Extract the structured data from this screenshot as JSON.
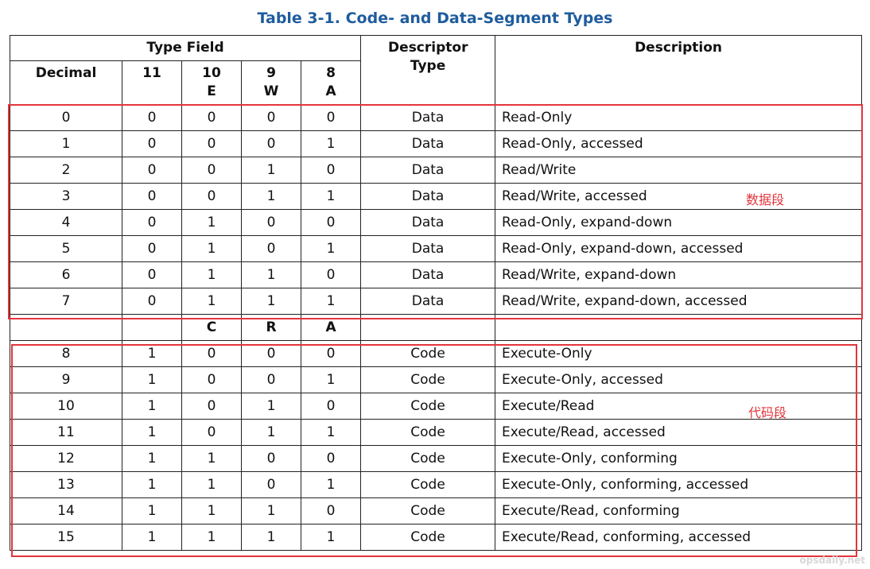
{
  "title": "Table 3-1.  Code- and Data-Segment Types",
  "headers": {
    "type_field": "Type Field",
    "descriptor_type": "Descriptor Type",
    "description": "Description",
    "decimal": "Decimal",
    "bit11": "11",
    "bit10": "10",
    "bit10_flag": "E",
    "bit9": "9",
    "bit9_flag": "W",
    "bit8": "8",
    "bit8_flag": "A"
  },
  "data_rows": [
    {
      "dec": "0",
      "b11": "0",
      "b10": "0",
      "b9": "0",
      "b8": "0",
      "type": "Data",
      "desc": "Read-Only"
    },
    {
      "dec": "1",
      "b11": "0",
      "b10": "0",
      "b9": "0",
      "b8": "1",
      "type": "Data",
      "desc": "Read-Only, accessed"
    },
    {
      "dec": "2",
      "b11": "0",
      "b10": "0",
      "b9": "1",
      "b8": "0",
      "type": "Data",
      "desc": "Read/Write"
    },
    {
      "dec": "3",
      "b11": "0",
      "b10": "0",
      "b9": "1",
      "b8": "1",
      "type": "Data",
      "desc": "Read/Write, accessed"
    },
    {
      "dec": "4",
      "b11": "0",
      "b10": "1",
      "b9": "0",
      "b8": "0",
      "type": "Data",
      "desc": "Read-Only, expand-down"
    },
    {
      "dec": "5",
      "b11": "0",
      "b10": "1",
      "b9": "0",
      "b8": "1",
      "type": "Data",
      "desc": "Read-Only, expand-down, accessed"
    },
    {
      "dec": "6",
      "b11": "0",
      "b10": "1",
      "b9": "1",
      "b8": "0",
      "type": "Data",
      "desc": "Read/Write, expand-down"
    },
    {
      "dec": "7",
      "b11": "0",
      "b10": "1",
      "b9": "1",
      "b8": "1",
      "type": "Data",
      "desc": "Read/Write, expand-down, accessed"
    }
  ],
  "code_flags": {
    "c": "C",
    "r": "R",
    "a": "A"
  },
  "code_rows": [
    {
      "dec": "8",
      "b11": "1",
      "b10": "0",
      "b9": "0",
      "b8": "0",
      "type": "Code",
      "desc": "Execute-Only"
    },
    {
      "dec": "9",
      "b11": "1",
      "b10": "0",
      "b9": "0",
      "b8": "1",
      "type": "Code",
      "desc": "Execute-Only, accessed"
    },
    {
      "dec": "10",
      "b11": "1",
      "b10": "0",
      "b9": "1",
      "b8": "0",
      "type": "Code",
      "desc": "Execute/Read"
    },
    {
      "dec": "11",
      "b11": "1",
      "b10": "0",
      "b9": "1",
      "b8": "1",
      "type": "Code",
      "desc": "Execute/Read, accessed"
    },
    {
      "dec": "12",
      "b11": "1",
      "b10": "1",
      "b9": "0",
      "b8": "0",
      "type": "Code",
      "desc": "Execute-Only, conforming"
    },
    {
      "dec": "13",
      "b11": "1",
      "b10": "1",
      "b9": "0",
      "b8": "1",
      "type": "Code",
      "desc": "Execute-Only, conforming, accessed"
    },
    {
      "dec": "14",
      "b11": "1",
      "b10": "1",
      "b9": "1",
      "b8": "0",
      "type": "Code",
      "desc": "Execute/Read, conforming"
    },
    {
      "dec": "15",
      "b11": "1",
      "b10": "1",
      "b9": "1",
      "b8": "1",
      "type": "Code",
      "desc": "Execute/Read, conforming, accessed"
    }
  ],
  "annotations": {
    "data_label": "数据段",
    "code_label": "代码段",
    "color": "#e3343c"
  },
  "watermark": "opsdaily.net"
}
